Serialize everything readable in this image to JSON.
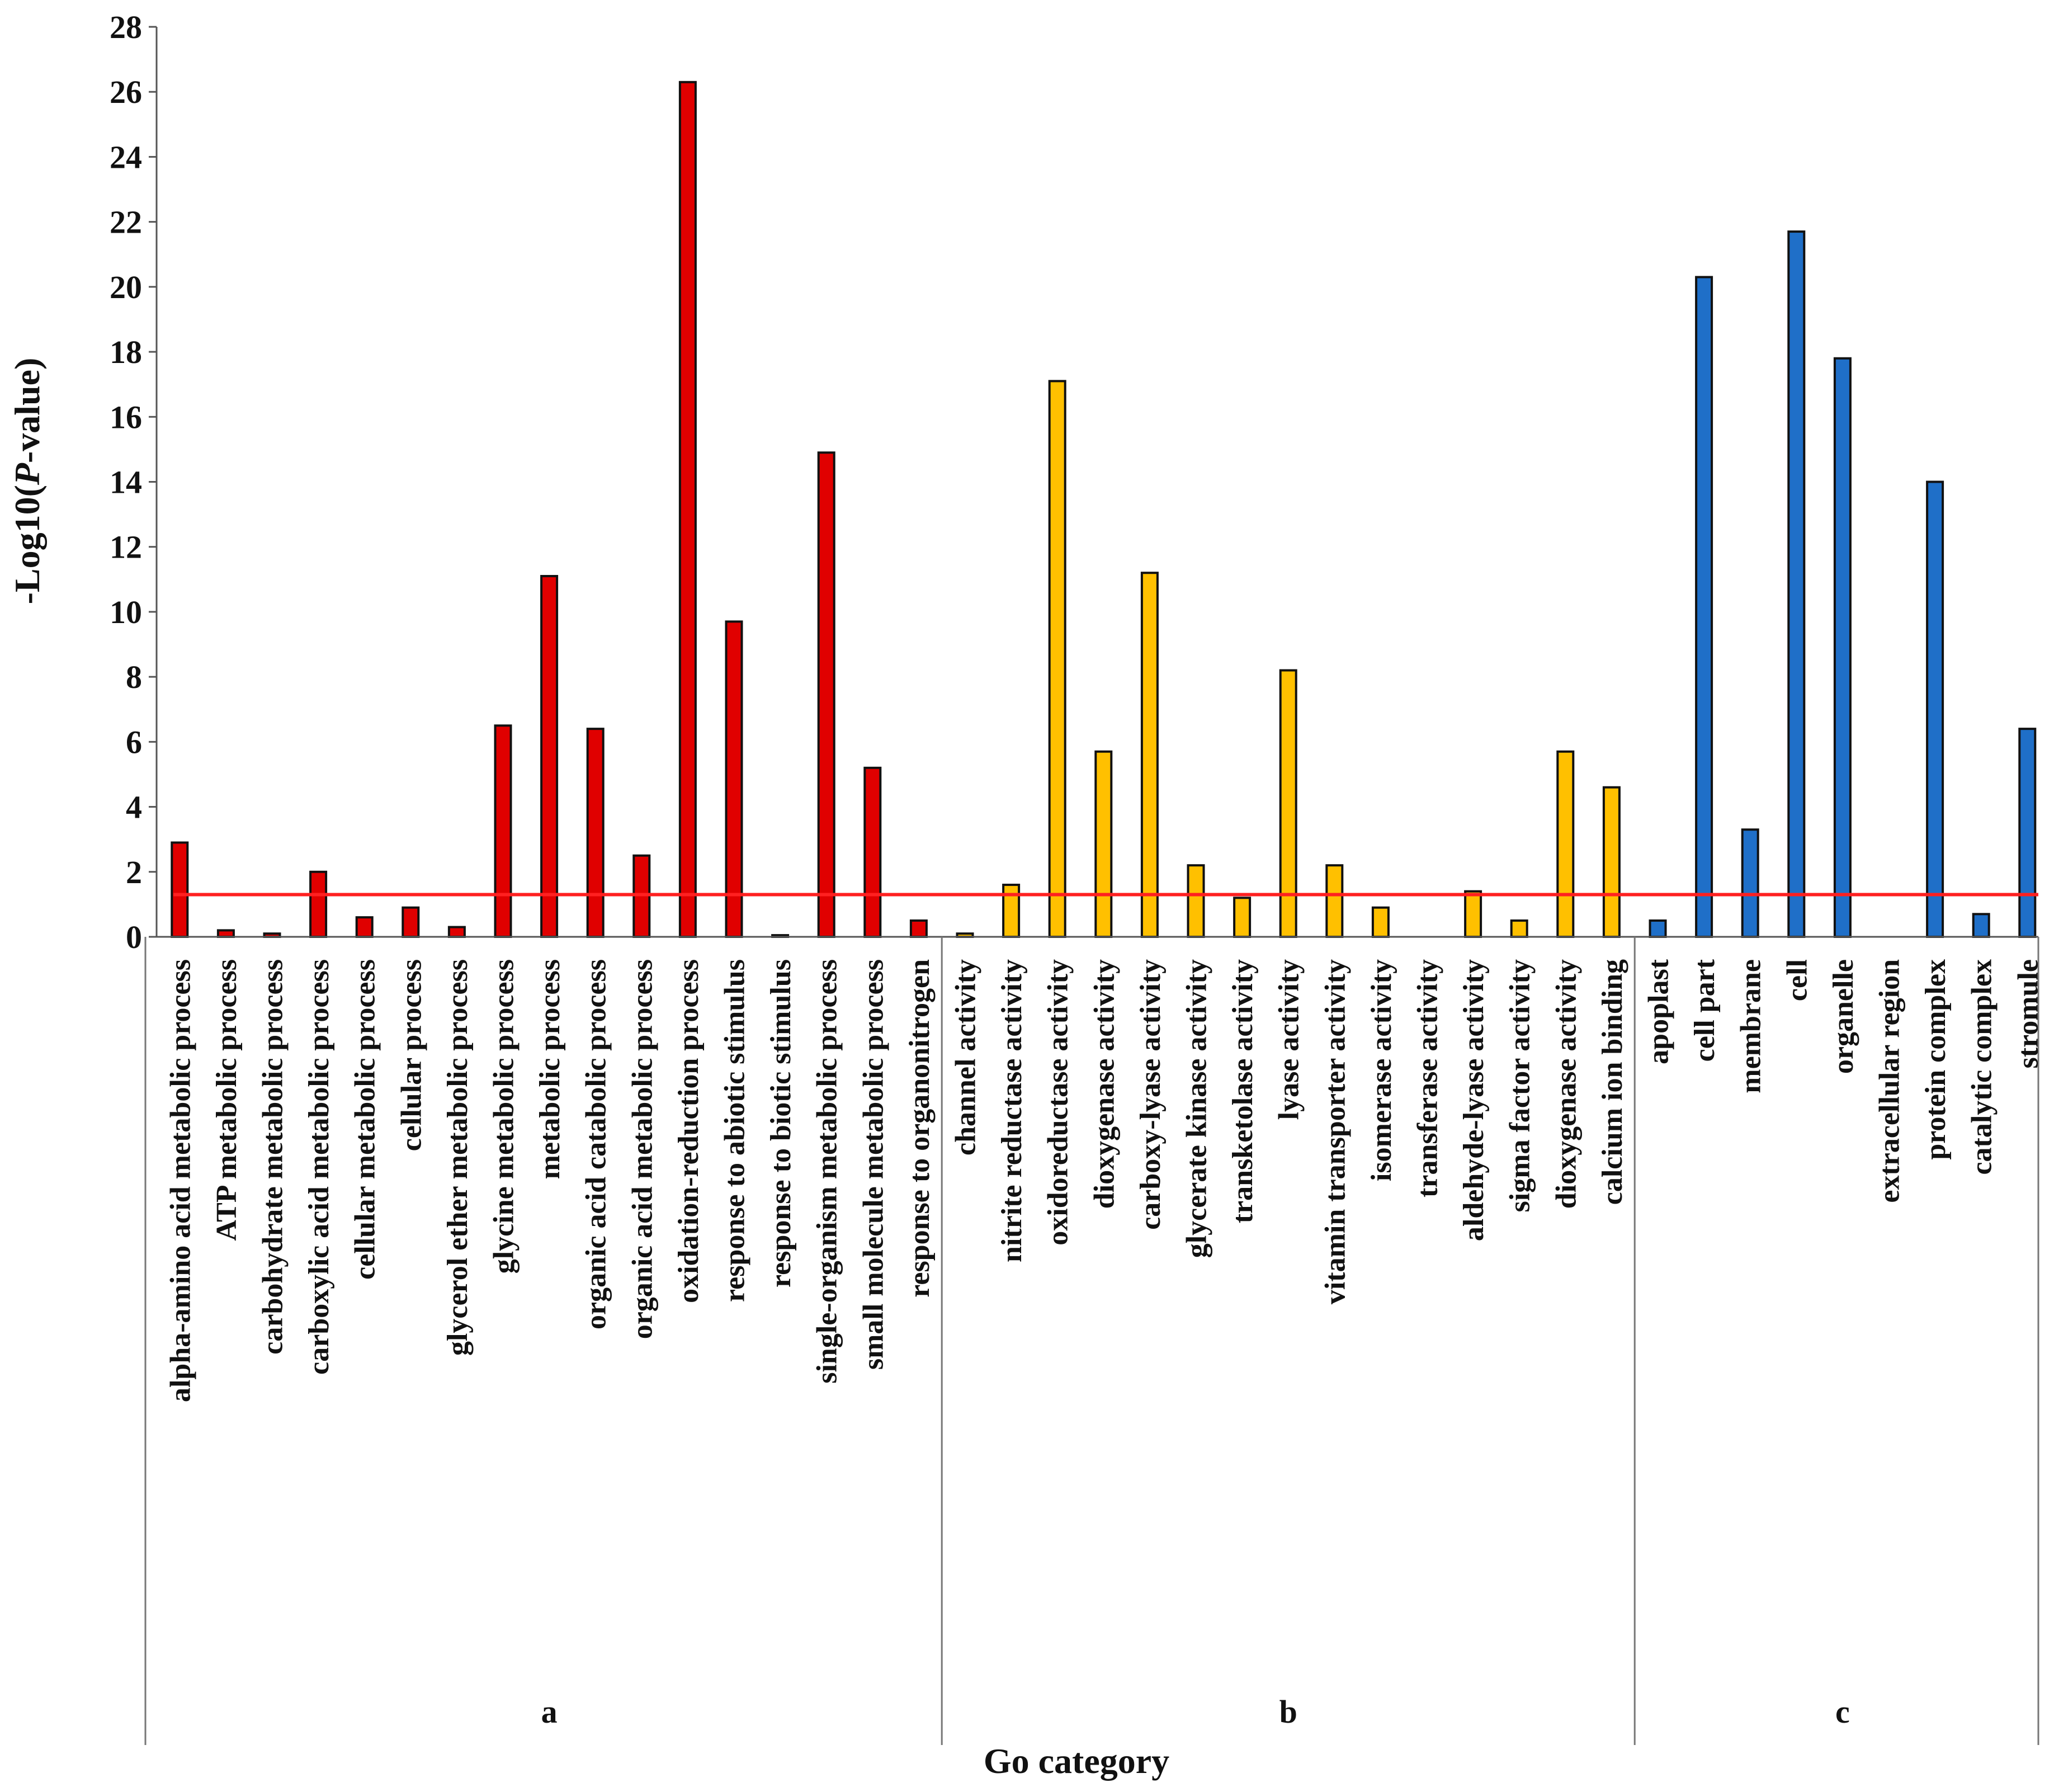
{
  "chart_data": {
    "type": "bar",
    "title": "",
    "xlabel": "Go category",
    "ylabel": "-Log10(P-value)",
    "ylabel_prefix": "-Log10(",
    "ylabel_italic": "P",
    "ylabel_suffix": "-value)",
    "ylim": [
      0,
      28
    ],
    "yticks": [
      0,
      2,
      4,
      6,
      8,
      10,
      12,
      14,
      16,
      18,
      20,
      22,
      24,
      26,
      28
    ],
    "threshold": 1.3,
    "colors": {
      "a": "#e00000",
      "b": "#ffc000",
      "c": "#1f6fc8",
      "threshold": "#ff2020"
    },
    "groups": [
      {
        "name": "a",
        "categories": [
          "alpha-amino acid metabolic process",
          "ATP metabolic process",
          "carbohydrate metabolic process",
          "carboxylic acid metabolic process",
          "cellular metabolic process",
          "cellular process",
          "glycerol ether metabolic process",
          "glycine metabolic process",
          "metabolic process",
          "organic acid catabolic process",
          "organic acid metabolic process",
          "oxidation-reduction process",
          "response to abiotic stimulus",
          "response to biotic stimulus",
          "single-organism metabolic process",
          "small molecule metabolic process",
          "response to organonitrogen"
        ],
        "values": [
          2.9,
          0.2,
          0.1,
          2.0,
          0.6,
          0.9,
          0.3,
          6.5,
          11.1,
          6.4,
          2.5,
          26.3,
          9.7,
          0.05,
          14.9,
          5.2,
          0.5
        ]
      },
      {
        "name": "b",
        "categories": [
          "channel activity",
          "nitrite reductase activity",
          "oxidoreductase activity",
          "dioxygenase activity",
          "carboxy-lyase activity",
          "glycerate kinase activity",
          "transketolase activity",
          "lyase activity",
          "vitamin transporter activity",
          "isomerase activity",
          "transferase activity",
          "aldehyde-lyase activity",
          "sigma factor activity",
          "dioxygenase activity",
          "calcium ion binding"
        ],
        "values": [
          0.1,
          1.6,
          17.1,
          5.7,
          11.2,
          2.2,
          1.2,
          8.2,
          2.2,
          0.9,
          0.0,
          1.4,
          0.5,
          5.7,
          4.6
        ]
      },
      {
        "name": "c",
        "categories": [
          "apoplast",
          "cell part",
          "membrane",
          "cell",
          "organelle",
          "extracellular region",
          "protein complex",
          "catalytic complex",
          "stromule"
        ],
        "values": [
          0.5,
          20.3,
          3.3,
          21.7,
          17.8,
          0.0,
          14.0,
          0.7,
          6.4
        ]
      }
    ]
  }
}
